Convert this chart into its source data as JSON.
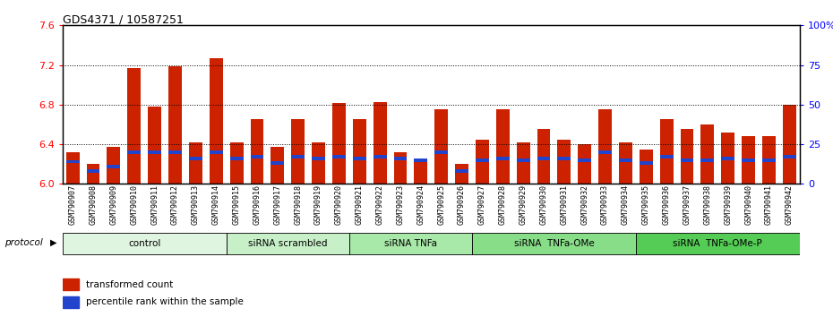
{
  "title": "GDS4371 / 10587251",
  "samples": [
    "GSM790907",
    "GSM790908",
    "GSM790909",
    "GSM790910",
    "GSM790911",
    "GSM790912",
    "GSM790913",
    "GSM790914",
    "GSM790915",
    "GSM790916",
    "GSM790917",
    "GSM790918",
    "GSM790919",
    "GSM790920",
    "GSM790921",
    "GSM790922",
    "GSM790923",
    "GSM790924",
    "GSM790925",
    "GSM790926",
    "GSM790927",
    "GSM790928",
    "GSM790929",
    "GSM790930",
    "GSM790931",
    "GSM790932",
    "GSM790933",
    "GSM790934",
    "GSM790935",
    "GSM790936",
    "GSM790937",
    "GSM790938",
    "GSM790939",
    "GSM790940",
    "GSM790941",
    "GSM790942"
  ],
  "red_values": [
    6.32,
    6.2,
    6.37,
    7.17,
    6.78,
    7.19,
    6.42,
    7.27,
    6.42,
    6.65,
    6.37,
    6.65,
    6.42,
    6.82,
    6.65,
    6.83,
    6.32,
    6.25,
    6.75,
    6.2,
    6.45,
    6.75,
    6.42,
    6.55,
    6.45,
    6.4,
    6.75,
    6.42,
    6.35,
    6.65,
    6.55,
    6.6,
    6.52,
    6.48,
    6.48,
    6.8
  ],
  "blue_values": [
    14,
    8,
    11,
    20,
    20,
    20,
    16,
    20,
    16,
    17,
    13,
    17,
    16,
    17,
    16,
    17,
    16,
    15,
    20,
    8,
    15,
    16,
    15,
    16,
    16,
    15,
    20,
    15,
    13,
    17,
    15,
    15,
    16,
    15,
    15,
    17
  ],
  "groups": [
    {
      "label": "control",
      "start": 0,
      "end": 8,
      "color": "#e0f5e0"
    },
    {
      "label": "siRNA scrambled",
      "start": 8,
      "end": 14,
      "color": "#c8f0c8"
    },
    {
      "label": "siRNA TNFa",
      "start": 14,
      "end": 20,
      "color": "#a8e8a8"
    },
    {
      "label": "siRNA  TNFa-OMe",
      "start": 20,
      "end": 28,
      "color": "#88dd88"
    },
    {
      "label": "siRNA  TNFa-OMe-P",
      "start": 28,
      "end": 36,
      "color": "#55cc55"
    }
  ],
  "ymin": 6.0,
  "ymax": 7.6,
  "yticks": [
    6.0,
    6.4,
    6.8,
    7.2,
    7.6
  ],
  "right_yticks": [
    0,
    25,
    50,
    75,
    100
  ],
  "bar_color": "#cc2200",
  "blue_color": "#2244cc",
  "background_color": "#ffffff"
}
